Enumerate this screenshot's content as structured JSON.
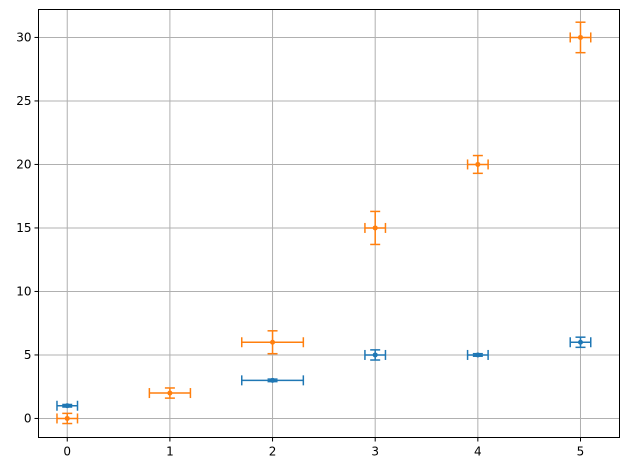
{
  "chart_data": {
    "type": "scatter",
    "title": "",
    "xlabel": "",
    "ylabel": "",
    "xlim": [
      -0.28,
      5.38
    ],
    "ylim": [
      -1.5,
      32.2
    ],
    "grid": true,
    "legend": "none",
    "x_ticks": [
      0,
      1,
      2,
      3,
      4,
      5
    ],
    "y_ticks": [
      0,
      5,
      10,
      15,
      20,
      25,
      30
    ],
    "series": [
      {
        "color": "#1f77b4",
        "points": [
          {
            "x": 0,
            "y": 1,
            "xerr": 0.1,
            "yerr": 0.1
          },
          {
            "x": 2,
            "y": 3,
            "xerr": 0.3,
            "yerr": 0.1
          },
          {
            "x": 3,
            "y": 5,
            "xerr": 0.1,
            "yerr": 0.4
          },
          {
            "x": 4,
            "y": 5,
            "xerr": 0.1,
            "yerr": 0.1
          },
          {
            "x": 5,
            "y": 6,
            "xerr": 0.1,
            "yerr": 0.4
          }
        ]
      },
      {
        "color": "#ff7f0e",
        "points": [
          {
            "x": 0,
            "y": 0,
            "xerr": 0.1,
            "yerr": 0.4
          },
          {
            "x": 1,
            "y": 2,
            "xerr": 0.2,
            "yerr": 0.4
          },
          {
            "x": 2,
            "y": 6,
            "xerr": 0.3,
            "yerr": 0.9
          },
          {
            "x": 3,
            "y": 15,
            "xerr": 0.1,
            "yerr": 1.3
          },
          {
            "x": 4,
            "y": 20,
            "xerr": 0.1,
            "yerr": 0.7
          },
          {
            "x": 5,
            "y": 30,
            "xerr": 0.1,
            "yerr": 1.2
          }
        ]
      }
    ]
  }
}
